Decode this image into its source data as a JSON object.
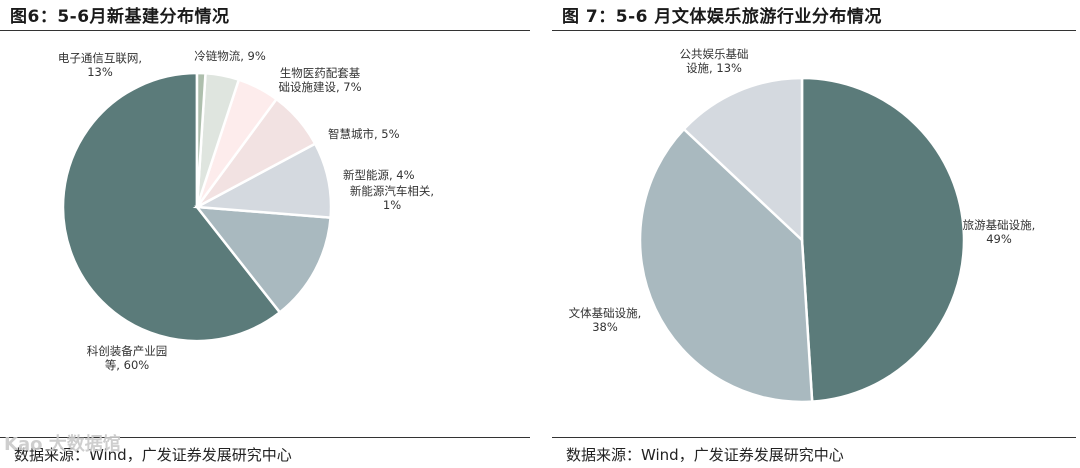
{
  "left_panel": {
    "title": "图6：5-6月新基建分布情况",
    "source": "数据来源：Wind，广发证券发展研究中心"
  },
  "right_panel": {
    "title": "图 7：5-6 月文体娱乐旅游行业分布情况",
    "source": "数据来源：Wind，广发证券发展研究中心"
  },
  "watermark": "Kao 大数据馆",
  "chart_data": [
    {
      "type": "pie",
      "title": "图6：5-6月新基建分布情况",
      "start_angle_deg": 90,
      "direction": "counterclockwise",
      "slices": [
        {
          "label_lines": [
            "科创装备产业园",
            "等, 60%"
          ],
          "value": 60,
          "color": "#5b7b7a"
        },
        {
          "label_lines": [
            "电子通信互联网,",
            "13%"
          ],
          "value": 13,
          "color": "#a9b9bf"
        },
        {
          "label_lines": [
            "冷链物流, 9%"
          ],
          "value": 9,
          "color": "#d4d9df"
        },
        {
          "label_lines": [
            "生物医药配套基",
            "础设施建设, 7%"
          ],
          "value": 7,
          "color": "#f2e2e2"
        },
        {
          "label_lines": [
            "智慧城市, 5%"
          ],
          "value": 5,
          "color": "#fdecec"
        },
        {
          "label_lines": [
            "新型能源, 4%"
          ],
          "value": 4,
          "color": "#dfe5df"
        },
        {
          "label_lines": [
            "新能源汽车相关,",
            "1%"
          ],
          "value": 1,
          "color": "#aebfad"
        }
      ]
    },
    {
      "type": "pie",
      "title": "图 7：5-6 月文体娱乐旅游行业分布情况",
      "start_angle_deg": 90,
      "direction": "clockwise",
      "slices": [
        {
          "label_lines": [
            "旅游基础设施,",
            "49%"
          ],
          "value": 49,
          "color": "#5b7b7a"
        },
        {
          "label_lines": [
            "文体基础设施,",
            "38%"
          ],
          "value": 38,
          "color": "#a9b9bf"
        },
        {
          "label_lines": [
            "公共娱乐基础",
            "设施, 13%"
          ],
          "value": 13,
          "color": "#d4d9df"
        }
      ]
    }
  ]
}
